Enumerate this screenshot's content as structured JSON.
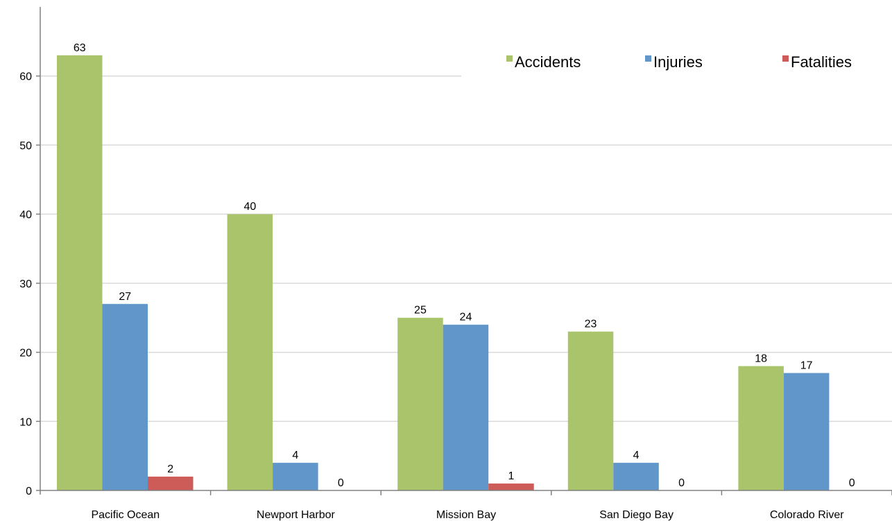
{
  "chart_data": {
    "type": "bar",
    "title": "",
    "xlabel": "",
    "ylabel": "",
    "categories": [
      "Pacific Ocean",
      "Newport Harbor",
      "Mission Bay",
      "San Diego Bay",
      "Colorado River"
    ],
    "series": [
      {
        "name": "Accidents",
        "color": "#A9C46B",
        "values": [
          63,
          40,
          25,
          23,
          18
        ]
      },
      {
        "name": "Injuries",
        "color": "#6196CA",
        "values": [
          27,
          4,
          24,
          4,
          17
        ]
      },
      {
        "name": "Fatalities",
        "color": "#CD5B57",
        "values": [
          2,
          0,
          1,
          0,
          0
        ]
      }
    ],
    "ylim": [
      0,
      70
    ],
    "yticks": [
      0,
      10,
      20,
      30,
      40,
      50,
      60
    ],
    "grid": true,
    "legend_position": "top-right",
    "data_labels": true
  }
}
